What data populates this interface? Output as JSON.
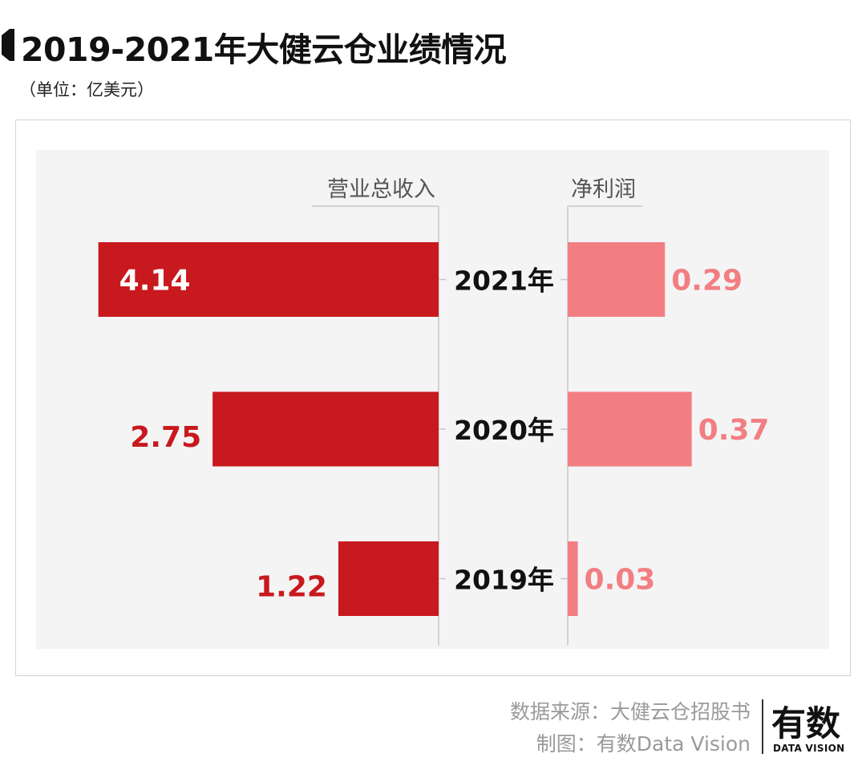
{
  "header": {
    "title": "2019-2021年大健云仓业绩情况",
    "unit": "（单位：亿美元）"
  },
  "chart_data": {
    "type": "bar",
    "orientation": "horizontal-butterfly",
    "categories": [
      "2021年",
      "2020年",
      "2019年"
    ],
    "series": [
      {
        "name": "营业总收入",
        "values": [
          4.14,
          2.75,
          1.22
        ],
        "color": "#c8191e",
        "label_color": "#c8191e"
      },
      {
        "name": "净利润",
        "values": [
          0.29,
          0.37,
          0.03
        ],
        "color": "#f27e82",
        "label_color": "#f27e82"
      }
    ],
    "grid": false,
    "background": "#f4f4f4"
  },
  "footer": {
    "source_line1": "数据来源：大健云仓招股书",
    "source_line2": "制图：有数Data Vision",
    "logo_main": "有数",
    "logo_sub": "DATA VISION"
  },
  "colors": {
    "title_mark": "#111111",
    "inside_label": "#ffffff",
    "axis_line": "#c8c8c8",
    "category_text": "#111111"
  }
}
